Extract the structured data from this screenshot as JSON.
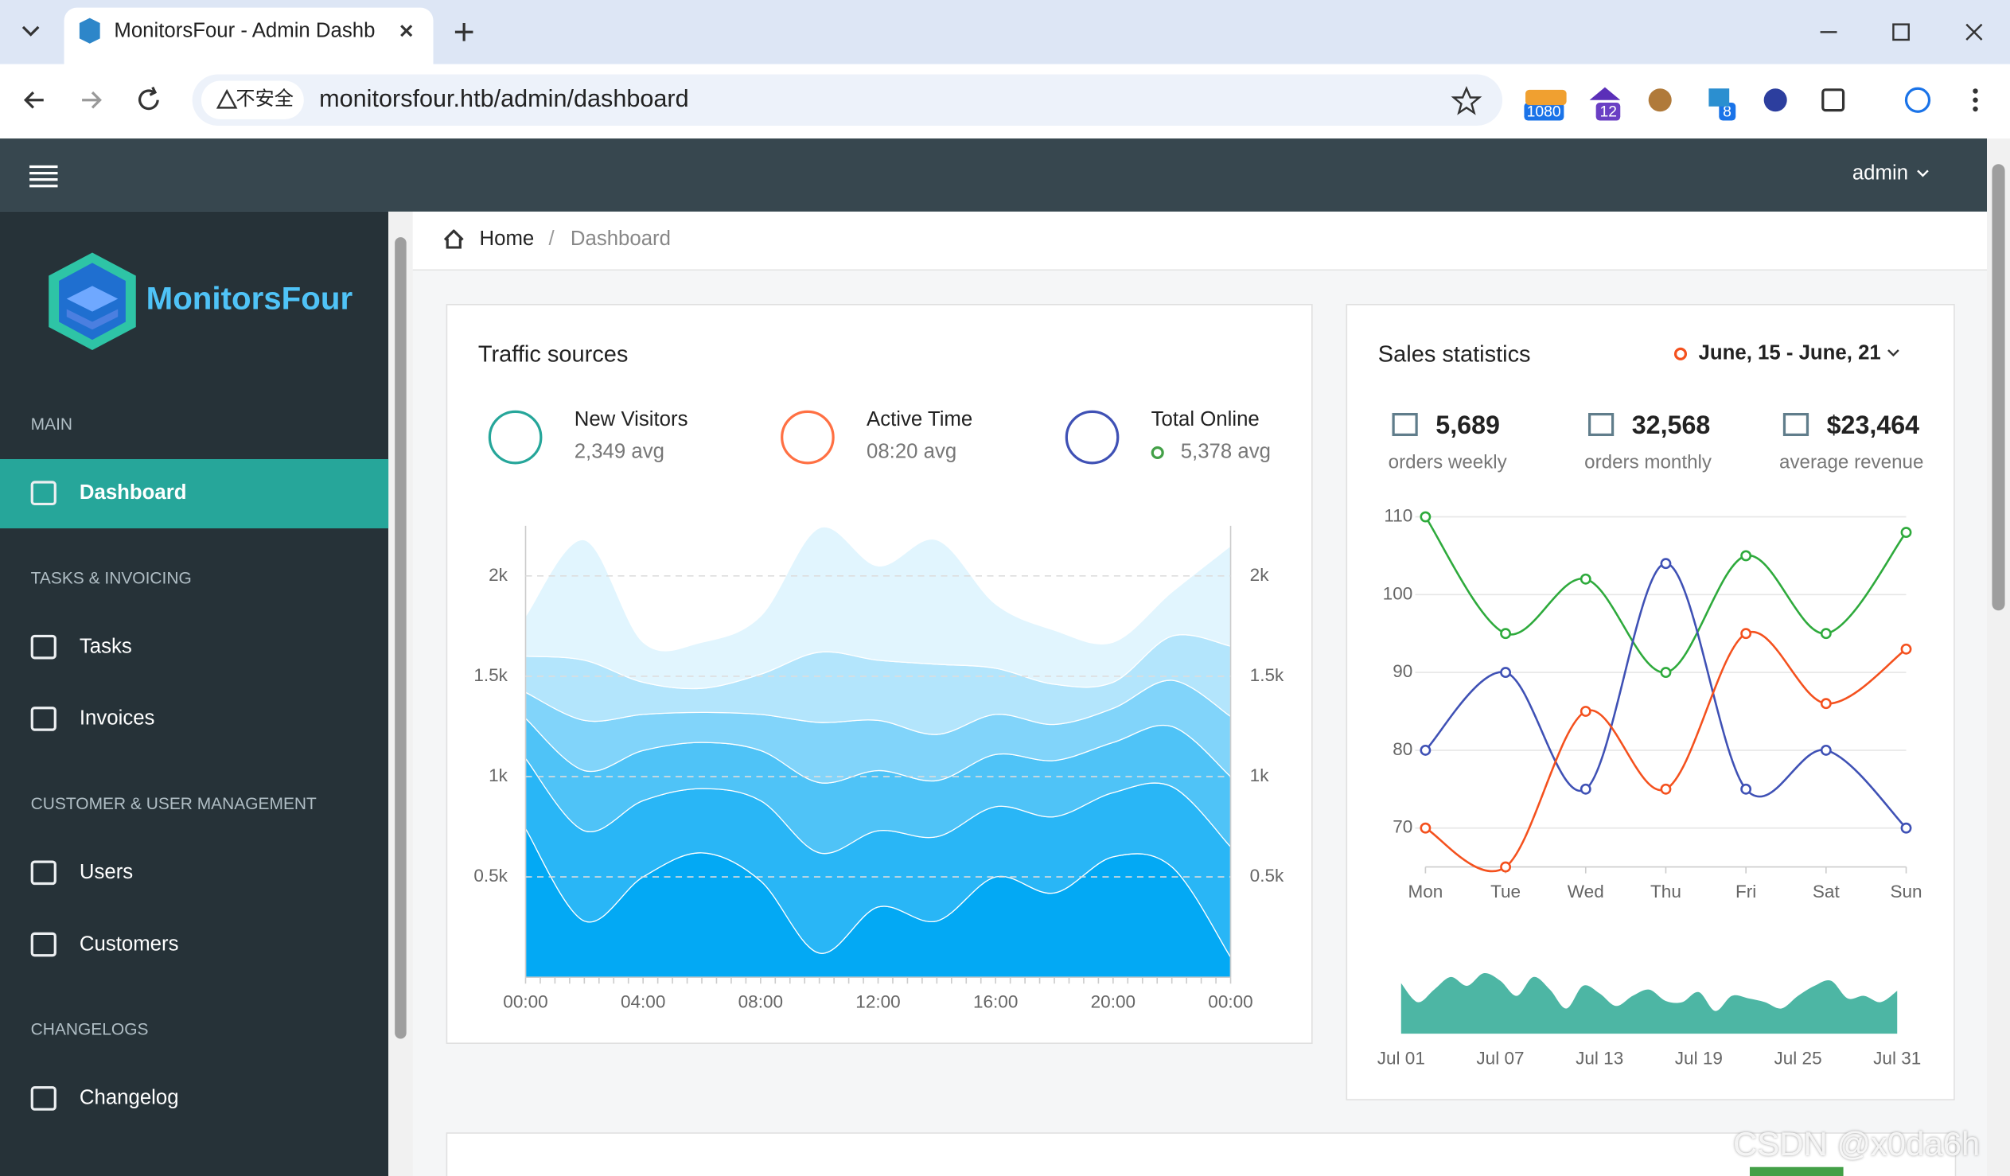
{
  "browser": {
    "tab_title": "MonitorsFour - Admin Dashb",
    "security": "不安全",
    "url": "monitorsfour.htb/admin/dashboard",
    "badges": [
      "1080",
      "12",
      "8"
    ]
  },
  "app": {
    "user": "admin",
    "brand": "MonitorsFour"
  },
  "sidebar": [
    {
      "title": "MAIN",
      "items": [
        "Dashboard"
      ]
    },
    {
      "title": "TASKS & INVOICING",
      "items": [
        "Tasks",
        "Invoices"
      ]
    },
    {
      "title": "CUSTOMER & USER MANAGEMENT",
      "items": [
        "Users",
        "Customers"
      ]
    },
    {
      "title": "CHANGELOGS",
      "items": [
        "Changelog"
      ]
    }
  ],
  "breadcrumb": [
    "Home",
    "Dashboard"
  ],
  "traffic": {
    "title": "Traffic sources",
    "stats": [
      {
        "label": "New Visitors",
        "value": "2,349 avg"
      },
      {
        "label": "Active Time",
        "value": "08:20 avg"
      },
      {
        "label": "Total Online",
        "value": "5,378 avg"
      }
    ],
    "chart": {
      "type": "area",
      "categories": [
        "00:00",
        null,
        "04:00",
        null,
        "08:00",
        null,
        "12:00",
        null,
        "16:00",
        null,
        "20:00",
        null,
        "00:00"
      ],
      "ylim": [
        0,
        2250
      ],
      "yticks": [
        {
          "value": 500,
          "label": "0.5k"
        },
        {
          "value": 1000,
          "label": "1k"
        },
        {
          "value": 1500,
          "label": "1.5k"
        },
        {
          "value": 2000,
          "label": "2k"
        }
      ],
      "grid": true,
      "series": [
        {
          "color": "#03a9f4",
          "values": [
            740,
            280,
            500,
            620,
            480,
            120,
            350,
            280,
            500,
            420,
            600,
            550,
            100
          ]
        },
        {
          "color": "#29b6f6",
          "values": [
            350,
            450,
            380,
            320,
            400,
            500,
            380,
            420,
            350,
            380,
            320,
            400,
            550
          ]
        },
        {
          "color": "#4fc3f7",
          "values": [
            200,
            300,
            250,
            230,
            250,
            350,
            300,
            280,
            260,
            280,
            250,
            300,
            350
          ]
        },
        {
          "color": "#81d4fa",
          "values": [
            130,
            250,
            180,
            150,
            180,
            300,
            250,
            230,
            200,
            180,
            170,
            230,
            300
          ]
        },
        {
          "color": "#b3e5fc",
          "values": [
            180,
            300,
            160,
            120,
            200,
            350,
            300,
            350,
            230,
            200,
            130,
            220,
            350
          ]
        },
        {
          "color": "#e1f5fe",
          "values": [
            200,
            600,
            200,
            230,
            290,
            620,
            470,
            620,
            320,
            270,
            200,
            220,
            500
          ]
        }
      ]
    }
  },
  "sales": {
    "title": "Sales statistics",
    "range": "June, 15 - June, 21",
    "stats": [
      {
        "value": "5,689",
        "label": "orders weekly"
      },
      {
        "value": "32,568",
        "label": "orders monthly"
      },
      {
        "value": "$23,464",
        "label": "average revenue"
      }
    ],
    "chart": {
      "type": "line",
      "categories": [
        "Mon",
        "Tue",
        "Wed",
        "Thu",
        "Fri",
        "Sat",
        "Sun"
      ],
      "ylim": [
        65,
        110
      ],
      "yticks": [
        70,
        80,
        90,
        100,
        110
      ],
      "grid": true,
      "series": [
        {
          "color": "#2eaa3c",
          "values": [
            110,
            95,
            102,
            90,
            105,
            95,
            108
          ]
        },
        {
          "color": "#3f51b5",
          "values": [
            80,
            90,
            75,
            104,
            75,
            80,
            70
          ]
        },
        {
          "color": "#f4511e",
          "values": [
            70,
            65,
            85,
            75,
            95,
            86,
            93
          ]
        }
      ]
    },
    "mini_chart": {
      "type": "area",
      "color": "#4db6a4",
      "categories": [
        "Jul 01",
        null,
        null,
        null,
        null,
        null,
        "Jul 07",
        null,
        null,
        null,
        null,
        null,
        "Jul 13",
        null,
        null,
        null,
        null,
        null,
        "Jul 19",
        null,
        null,
        null,
        null,
        null,
        "Jul 25",
        null,
        null,
        null,
        null,
        null,
        "Jul 31"
      ],
      "ylim": [
        0,
        55
      ],
      "values": [
        40,
        25,
        35,
        45,
        38,
        48,
        42,
        30,
        45,
        35,
        20,
        38,
        32,
        22,
        30,
        35,
        26,
        25,
        33,
        18,
        30,
        28,
        25,
        20,
        30,
        38,
        42,
        28,
        30,
        25,
        34
      ]
    }
  },
  "watermark": "CSDN @x0da6h"
}
